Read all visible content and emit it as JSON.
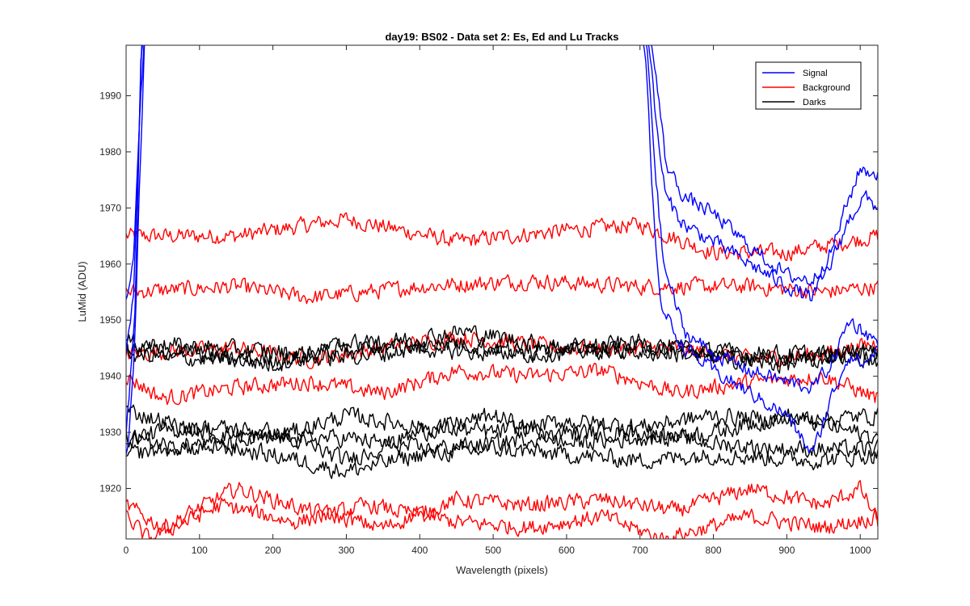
{
  "chart_data": {
    "type": "line",
    "title": "day19: BS02 - Data set 2: Es, Ed and Lu Tracks",
    "xlabel": "Wavelength (pixels)",
    "ylabel": "LuMid (ADU)",
    "xlim": [
      0,
      1024
    ],
    "ylim": [
      1911,
      1999
    ],
    "xticks": [
      0,
      100,
      200,
      300,
      400,
      500,
      600,
      700,
      800,
      900,
      1000
    ],
    "yticks": [
      1920,
      1930,
      1940,
      1950,
      1960,
      1970,
      1980,
      1990
    ],
    "grid": false,
    "legend_position": "top-right",
    "legend": [
      {
        "label": "Signal",
        "color": "#0000ff"
      },
      {
        "label": "Background",
        "color": "#ff0000"
      },
      {
        "label": "Darks",
        "color": "#000000"
      }
    ],
    "series_groups": [
      {
        "group": "Background",
        "color": "#ff0000",
        "noise": 1.3,
        "tracks": [
          {
            "points": [
              [
                0,
                1965
              ],
              [
                150,
                1965
              ],
              [
                300,
                1968
              ],
              [
                450,
                1964
              ],
              [
                600,
                1966
              ],
              [
                700,
                1967
              ],
              [
                800,
                1962
              ],
              [
                900,
                1962
              ],
              [
                1024,
                1965
              ]
            ]
          },
          {
            "points": [
              [
                0,
                1955
              ],
              [
                150,
                1956
              ],
              [
                250,
                1954
              ],
              [
                400,
                1956
              ],
              [
                550,
                1957
              ],
              [
                700,
                1956
              ],
              [
                850,
                1956
              ],
              [
                950,
                1955
              ],
              [
                1024,
                1956
              ]
            ]
          },
          {
            "points": [
              [
                0,
                1944
              ],
              [
                150,
                1945
              ],
              [
                250,
                1943
              ],
              [
                350,
                1945
              ],
              [
                450,
                1947
              ],
              [
                600,
                1945
              ],
              [
                750,
                1945
              ],
              [
                850,
                1943
              ],
              [
                950,
                1944
              ],
              [
                1024,
                1946
              ]
            ]
          },
          {
            "points": [
              [
                0,
                1940
              ],
              [
                50,
                1936
              ],
              [
                150,
                1938
              ],
              [
                250,
                1939
              ],
              [
                350,
                1937
              ],
              [
                450,
                1941
              ],
              [
                550,
                1940
              ],
              [
                650,
                1941
              ],
              [
                750,
                1937
              ],
              [
                850,
                1939
              ],
              [
                950,
                1940
              ],
              [
                1024,
                1936
              ]
            ]
          },
          {
            "points": [
              [
                0,
                1917
              ],
              [
                50,
                1913
              ],
              [
                150,
                1920
              ],
              [
                250,
                1916
              ],
              [
                350,
                1913
              ],
              [
                450,
                1918
              ],
              [
                550,
                1917
              ],
              [
                650,
                1918
              ],
              [
                750,
                1916
              ],
              [
                850,
                1920
              ],
              [
                950,
                1917
              ],
              [
                1000,
                1920
              ],
              [
                1024,
                1914
              ]
            ]
          },
          {
            "points": [
              [
                0,
                1915
              ],
              [
                30,
                1911
              ],
              [
                130,
                1917
              ],
              [
                230,
                1914
              ],
              [
                330,
                1917
              ],
              [
                450,
                1914
              ],
              [
                550,
                1913
              ],
              [
                650,
                1915
              ],
              [
                730,
                1911
              ],
              [
                850,
                1915
              ],
              [
                950,
                1913
              ],
              [
                1024,
                1915
              ]
            ]
          }
        ]
      },
      {
        "group": "Darks",
        "color": "#000000",
        "noise": 1.4,
        "tracks": [
          {
            "points": [
              [
                0,
                1945
              ],
              [
                100,
                1944
              ],
              [
                200,
                1942
              ],
              [
                300,
                1946
              ],
              [
                400,
                1945
              ],
              [
                500,
                1944
              ],
              [
                600,
                1945
              ],
              [
                700,
                1946
              ],
              [
                800,
                1944
              ],
              [
                900,
                1943
              ],
              [
                1024,
                1944
              ]
            ]
          },
          {
            "points": [
              [
                0,
                1944
              ],
              [
                100,
                1943
              ],
              [
                250,
                1943
              ],
              [
                350,
                1944
              ],
              [
                450,
                1946
              ],
              [
                550,
                1944
              ],
              [
                700,
                1945
              ],
              [
                850,
                1944
              ],
              [
                950,
                1944
              ],
              [
                1024,
                1943
              ]
            ]
          },
          {
            "points": [
              [
                0,
                1946
              ],
              [
                120,
                1945
              ],
              [
                250,
                1944
              ],
              [
                350,
                1946
              ],
              [
                460,
                1948
              ],
              [
                600,
                1945
              ],
              [
                750,
                1944
              ],
              [
                900,
                1942
              ],
              [
                1024,
                1945
              ]
            ]
          },
          {
            "points": [
              [
                0,
                1934
              ],
              [
                100,
                1930
              ],
              [
                200,
                1929
              ],
              [
                300,
                1933
              ],
              [
                400,
                1931
              ],
              [
                500,
                1930
              ],
              [
                600,
                1932
              ],
              [
                700,
                1931
              ],
              [
                800,
                1933
              ],
              [
                900,
                1932
              ],
              [
                1024,
                1933
              ]
            ]
          },
          {
            "points": [
              [
                0,
                1929
              ],
              [
                100,
                1931
              ],
              [
                200,
                1930
              ],
              [
                300,
                1925
              ],
              [
                400,
                1930
              ],
              [
                500,
                1933
              ],
              [
                600,
                1928
              ],
              [
                700,
                1929
              ],
              [
                800,
                1930
              ],
              [
                900,
                1933
              ],
              [
                1024,
                1929
              ]
            ]
          },
          {
            "points": [
              [
                0,
                1929
              ],
              [
                100,
                1927
              ],
              [
                200,
                1929
              ],
              [
                300,
                1929
              ],
              [
                400,
                1927
              ],
              [
                500,
                1928
              ],
              [
                600,
                1930
              ],
              [
                700,
                1930
              ],
              [
                800,
                1928
              ],
              [
                900,
                1927
              ],
              [
                1024,
                1927
              ]
            ]
          },
          {
            "points": [
              [
                0,
                1926
              ],
              [
                100,
                1928
              ],
              [
                200,
                1926
              ],
              [
                300,
                1923
              ],
              [
                400,
                1926
              ],
              [
                500,
                1927
              ],
              [
                600,
                1926
              ],
              [
                700,
                1925
              ],
              [
                800,
                1926
              ],
              [
                940,
                1925
              ],
              [
                1024,
                1926
              ]
            ]
          }
        ]
      },
      {
        "group": "Signal",
        "color": "#0000ff",
        "noise": 1.2,
        "tracks": [
          {
            "points": [
              [
                0,
                1954
              ],
              [
                10,
                1960
              ],
              [
                15,
                1975
              ],
              [
                20,
                1990
              ],
              [
                25,
                2002
              ],
              [
                100,
                2002
              ],
              [
                700,
                2002
              ],
              [
                715,
                2000
              ],
              [
                725,
                1990
              ],
              [
                735,
                1978
              ],
              [
                760,
                1972
              ],
              [
                800,
                1969
              ],
              [
                850,
                1963
              ],
              [
                900,
                1958
              ],
              [
                935,
                1957
              ],
              [
                960,
                1962
              ],
              [
                980,
                1970
              ],
              [
                1000,
                1977
              ],
              [
                1024,
                1976
              ]
            ]
          },
          {
            "points": [
              [
                0,
                1943
              ],
              [
                10,
                1955
              ],
              [
                18,
                1985
              ],
              [
                22,
                2002
              ],
              [
                100,
                2002
              ],
              [
                700,
                2002
              ],
              [
                712,
                2000
              ],
              [
                722,
                1985
              ],
              [
                735,
                1972
              ],
              [
                760,
                1967
              ],
              [
                800,
                1964
              ],
              [
                850,
                1960
              ],
              [
                900,
                1956
              ],
              [
                935,
                1954
              ],
              [
                960,
                1960
              ],
              [
                985,
                1968
              ],
              [
                1005,
                1972
              ],
              [
                1024,
                1970
              ]
            ]
          },
          {
            "points": [
              [
                0,
                1930
              ],
              [
                12,
                1950
              ],
              [
                20,
                1995
              ],
              [
                25,
                2002
              ],
              [
                100,
                2002
              ],
              [
                700,
                2002
              ],
              [
                710,
                1998
              ],
              [
                722,
                1975
              ],
              [
                732,
                1960
              ],
              [
                760,
                1948
              ],
              [
                800,
                1944
              ],
              [
                850,
                1941
              ],
              [
                900,
                1939
              ],
              [
                935,
                1938
              ],
              [
                960,
                1942
              ],
              [
                985,
                1950
              ],
              [
                1005,
                1948
              ],
              [
                1024,
                1946
              ]
            ]
          },
          {
            "points": [
              [
                0,
                1925
              ],
              [
                10,
                1940
              ],
              [
                20,
                1980
              ],
              [
                26,
                2002
              ],
              [
                100,
                2002
              ],
              [
                700,
                2002
              ],
              [
                708,
                1996
              ],
              [
                720,
                1965
              ],
              [
                730,
                1952
              ],
              [
                760,
                1945
              ],
              [
                800,
                1941
              ],
              [
                850,
                1937
              ],
              [
                900,
                1933
              ],
              [
                935,
                1926
              ],
              [
                960,
                1936
              ],
              [
                985,
                1944
              ],
              [
                1005,
                1942
              ],
              [
                1024,
                1945
              ]
            ]
          }
        ]
      }
    ]
  }
}
